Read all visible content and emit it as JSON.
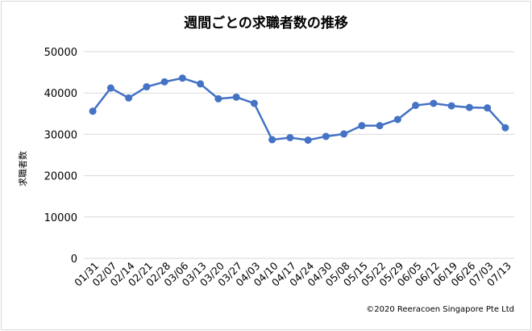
{
  "chart_data": {
    "type": "line",
    "title": "週間ごとの求職者数の推移",
    "xlabel": "",
    "ylabel": "求職者数",
    "categories": [
      "01/31",
      "02/07",
      "02/14",
      "02/21",
      "02/28",
      "03/06",
      "03/13",
      "03/20",
      "03/27",
      "04/03",
      "04/10",
      "04/17",
      "04/24",
      "04/30",
      "05/08",
      "05/15",
      "05/22",
      "05/29",
      "06/05",
      "06/12",
      "06/19",
      "06/26",
      "07/03",
      "07/13"
    ],
    "series": [
      {
        "values": [
          35600,
          41200,
          38800,
          41500,
          42700,
          43600,
          42200,
          38600,
          39000,
          37500,
          28700,
          29200,
          28600,
          29500,
          30100,
          32100,
          32100,
          33600,
          37000,
          37500,
          36900,
          36500,
          36400,
          31600
        ]
      }
    ],
    "yticks": [
      "0",
      "10000",
      "20000",
      "30000",
      "40000",
      "50000"
    ],
    "ylim": [
      0,
      50000
    ],
    "grid": true,
    "legend": "none",
    "credit": "©2020 Reeracoen Singapore Pte Ltd"
  },
  "colors": {
    "line": "#4472C4",
    "grid": "#d9d9d9",
    "text": "#000000",
    "border": "#d9d9d9"
  }
}
